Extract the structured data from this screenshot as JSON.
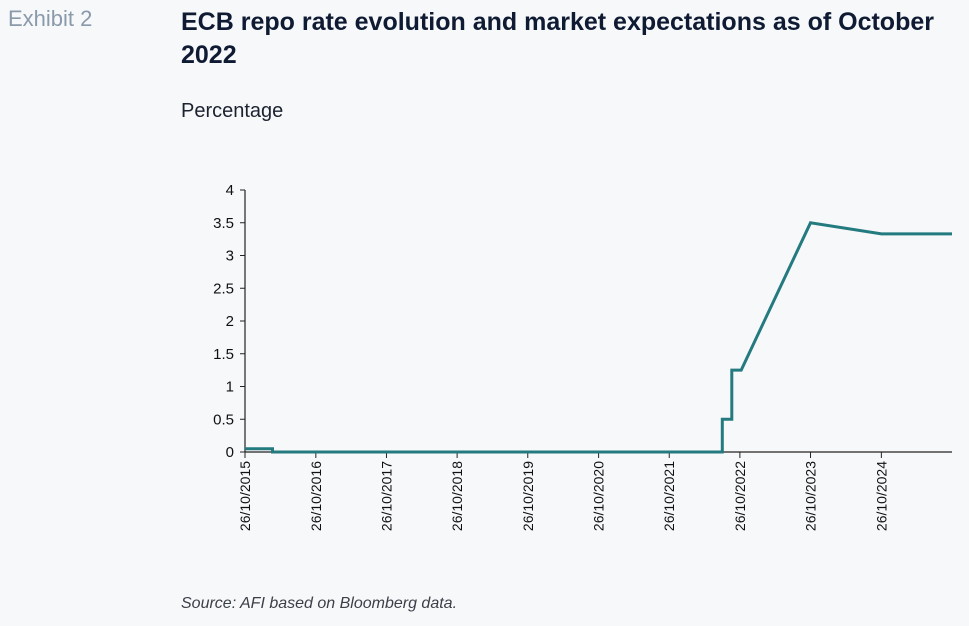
{
  "header": {
    "exhibit_label": "Exhibit 2",
    "title": "ECB repo rate evolution and market expectations as of October 2022"
  },
  "footer": {
    "source": "Source: AFI based on Bloomberg data."
  },
  "chart_data": {
    "type": "line",
    "ylabel": "Percentage",
    "ylim": [
      0,
      4
    ],
    "yticks": [
      "0",
      "0.5",
      "1",
      "1.5",
      "2",
      "2.5",
      "3",
      "3.5",
      "4"
    ],
    "xlim": [
      "2015-10-26",
      "2025-10-26"
    ],
    "xticks": [
      "26/10/2015",
      "26/10/2016",
      "26/10/2017",
      "26/10/2018",
      "26/10/2019",
      "26/10/2020",
      "26/10/2021",
      "26/10/2022",
      "26/10/2023",
      "26/10/2024"
    ],
    "grid": false,
    "legend": "none",
    "color": "#237a7f",
    "series": [
      {
        "x": [
          "2015-10-26",
          "2016-03-16",
          "2016-03-16",
          "2022-07-27",
          "2022-07-27",
          "2022-09-14",
          "2022-09-14",
          "2022-11-02",
          "2023-10-26",
          "2024-10-26",
          "2025-10-26"
        ],
        "values": [
          0.05,
          0.05,
          0,
          0,
          0.5,
          0.5,
          1.25,
          1.25,
          3.5,
          3.33,
          3.33
        ]
      }
    ]
  }
}
